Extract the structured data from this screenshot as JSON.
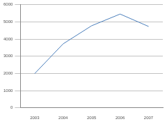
{
  "chart_data": {
    "type": "line",
    "categories": [
      "2003",
      "2004",
      "2005",
      "2006",
      "2007"
    ],
    "values": [
      1990,
      3720,
      4770,
      5450,
      4730
    ],
    "color": "#4a7ebb",
    "ylim": [
      0,
      6000
    ],
    "yticks": [
      0,
      1000,
      2000,
      3000,
      4000,
      5000,
      6000
    ],
    "grid": true
  }
}
